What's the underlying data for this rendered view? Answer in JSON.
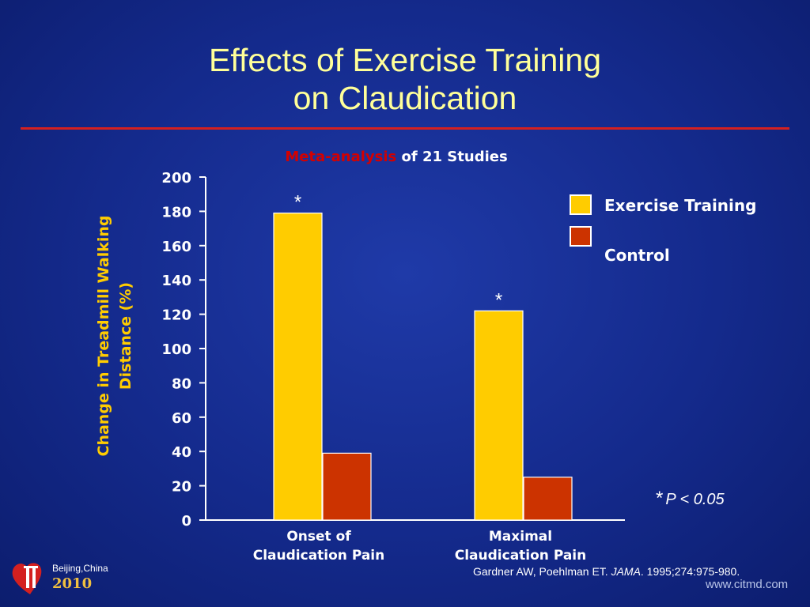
{
  "slide": {
    "title_line1": "Effects of Exercise Training",
    "title_line2": "on Claudication",
    "subtitle_highlight": "Meta-analysis",
    "subtitle_rest": " of 21 Studies",
    "citation_pre": "Gardner AW, Poehlman ET. ",
    "citation_journal": "JAMA",
    "citation_post": ". 1995;274:975-980.",
    "logo_city": "Beijing,China",
    "logo_year": "2010",
    "website": "www.citmd.com",
    "significance_star": "*",
    "significance_text": "P < 0.05"
  },
  "colors": {
    "exercise": "#ffcc00",
    "control": "#cc3300",
    "title": "#ffff99",
    "rule": "#d42020"
  },
  "chart_data": {
    "type": "bar",
    "title": "Meta-analysis of 21 Studies",
    "ylabel_line1": "Change in Treadmill Walking",
    "ylabel_line2": "Distance (%)",
    "categories": [
      "Onset of Claudication Pain",
      "Maximal Claudication Pain"
    ],
    "category_lines": [
      [
        "Onset of",
        "Claudication Pain"
      ],
      [
        "Maximal",
        "Claudication Pain"
      ]
    ],
    "series": [
      {
        "name": "Exercise Training",
        "values": [
          179,
          122
        ],
        "color": "#ffcc00",
        "significance": [
          "*",
          "*"
        ]
      },
      {
        "name": "Control",
        "values": [
          39,
          25
        ],
        "color": "#cc3300"
      }
    ],
    "ylim": [
      0,
      200
    ],
    "yticks": [
      0,
      20,
      40,
      60,
      80,
      100,
      120,
      140,
      160,
      180,
      200
    ],
    "legend_position": "top-right",
    "grid": false
  }
}
